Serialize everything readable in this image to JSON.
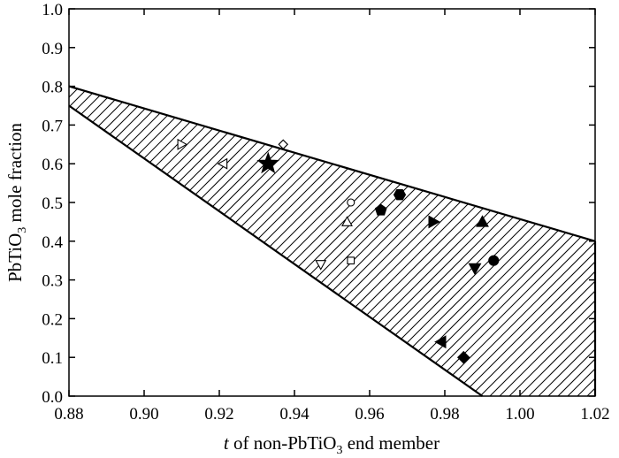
{
  "chart_data": {
    "type": "scatter",
    "title": "",
    "xlabel": {
      "italic": "t",
      "rest_pre": " of non-PbTiO",
      "sub": "3",
      "rest_post": " end member"
    },
    "ylabel": {
      "pre": "PbTiO",
      "sub": "3",
      "post": " mole fraction"
    },
    "xlim": [
      0.88,
      1.02
    ],
    "ylim": [
      0.0,
      1.0
    ],
    "xticks": [
      "0.88",
      "0.90",
      "0.92",
      "0.94",
      "0.96",
      "0.98",
      "1.00",
      "1.02"
    ],
    "yticks": [
      "0.0",
      "0.1",
      "0.2",
      "0.3",
      "0.4",
      "0.5",
      "0.6",
      "0.7",
      "0.8",
      "0.9",
      "1.0"
    ],
    "grid": false,
    "hatched_region": {
      "upper_boundary": [
        [
          0.88,
          0.8
        ],
        [
          1.02,
          0.4
        ]
      ],
      "lower_boundary": [
        [
          0.88,
          0.75
        ],
        [
          0.99,
          0.0
        ]
      ],
      "fill": "diagonal hatch"
    },
    "points": [
      {
        "marker": "triangle-right-open",
        "x": 0.91,
        "y": 0.65
      },
      {
        "marker": "triangle-left-open",
        "x": 0.921,
        "y": 0.6
      },
      {
        "marker": "star-filled",
        "x": 0.933,
        "y": 0.6
      },
      {
        "marker": "diamond-open",
        "x": 0.937,
        "y": 0.65
      },
      {
        "marker": "triangle-down-open",
        "x": 0.947,
        "y": 0.34
      },
      {
        "marker": "triangle-up-open",
        "x": 0.954,
        "y": 0.45
      },
      {
        "marker": "circle-open",
        "x": 0.955,
        "y": 0.5
      },
      {
        "marker": "square-open",
        "x": 0.955,
        "y": 0.35
      },
      {
        "marker": "pentagon-filled",
        "x": 0.963,
        "y": 0.48
      },
      {
        "marker": "hexagon-filled",
        "x": 0.968,
        "y": 0.52
      },
      {
        "marker": "triangle-right-filled",
        "x": 0.977,
        "y": 0.45
      },
      {
        "marker": "triangle-left-filled",
        "x": 0.979,
        "y": 0.14
      },
      {
        "marker": "diamond-filled",
        "x": 0.985,
        "y": 0.1
      },
      {
        "marker": "triangle-down-filled",
        "x": 0.988,
        "y": 0.33
      },
      {
        "marker": "triangle-up-filled",
        "x": 0.99,
        "y": 0.45
      },
      {
        "marker": "circle-filled",
        "x": 0.993,
        "y": 0.35
      }
    ],
    "colors": {
      "ink": "#000000",
      "background": "#ffffff"
    }
  }
}
